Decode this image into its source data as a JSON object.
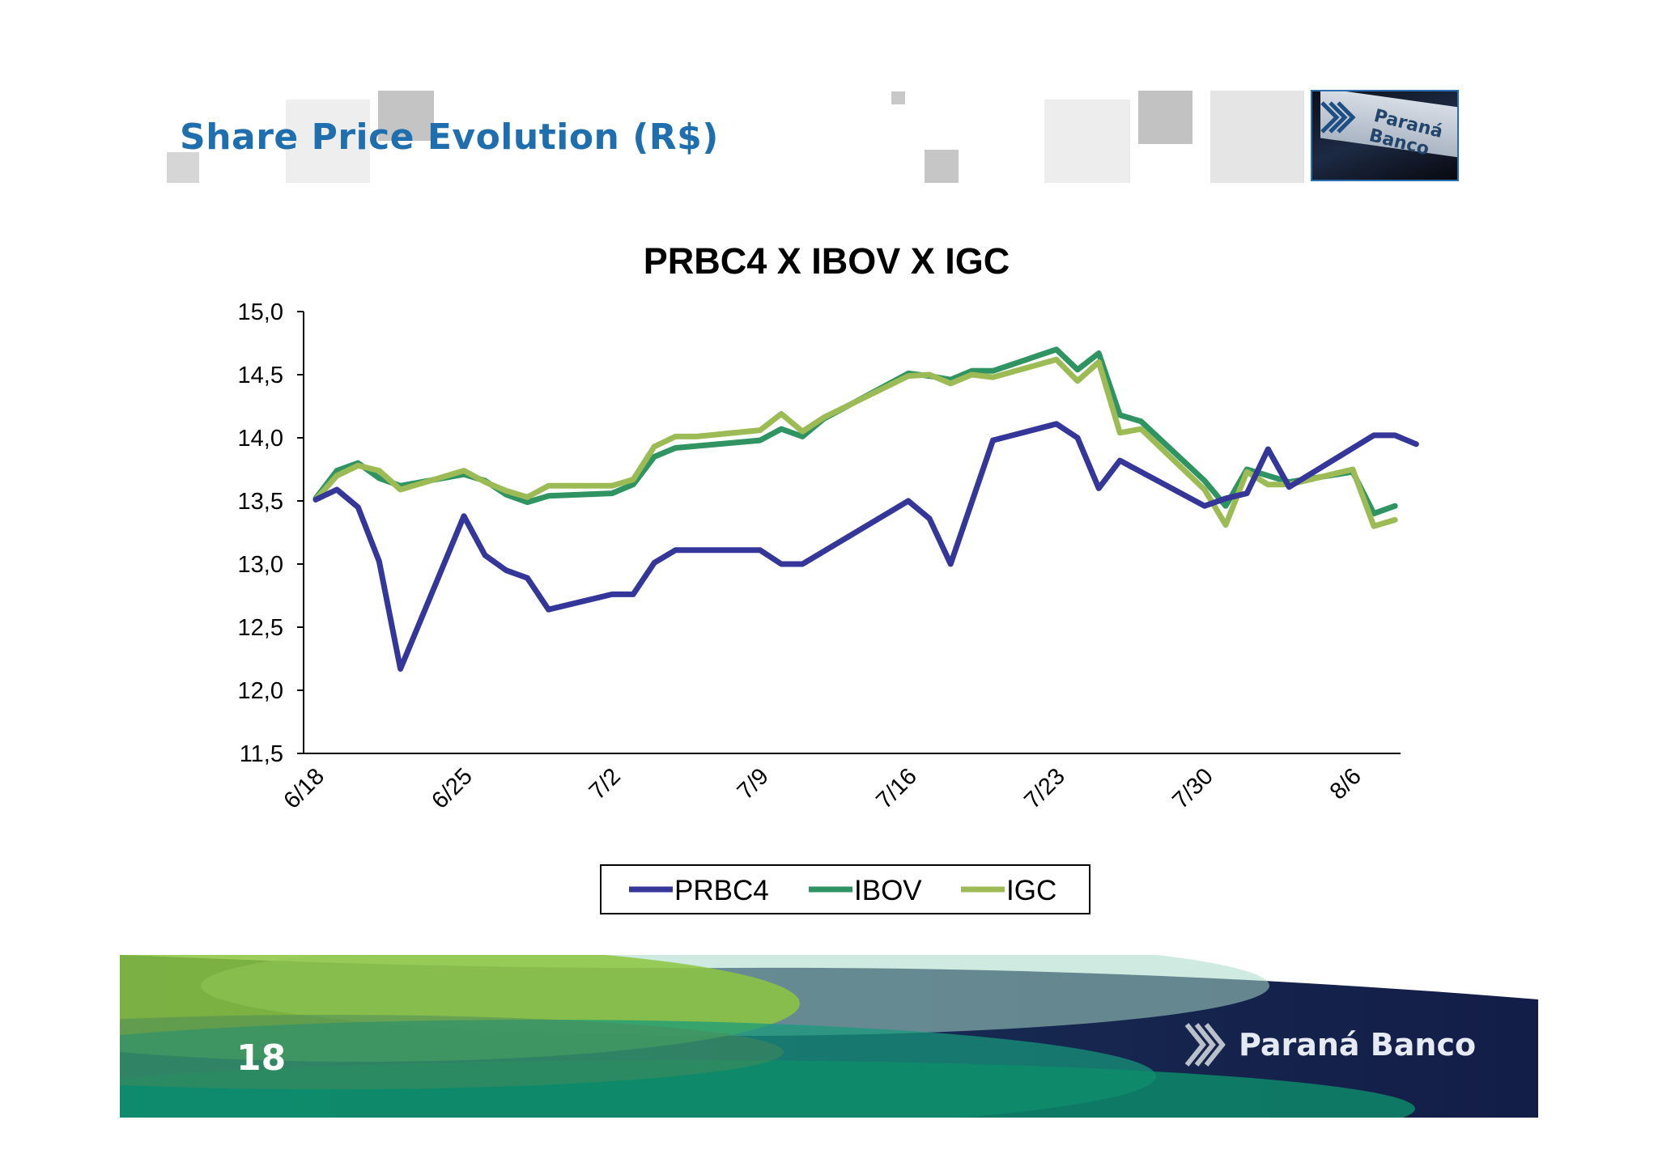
{
  "slide": {
    "title": "Share Price Evolution (R$)",
    "page_number": "18",
    "brand_name": "Paraná Banco",
    "thumbnail_text": "Paraná Banco"
  },
  "colors": {
    "title": "#1f6fae",
    "PRBC4": "#35369a",
    "IBOV": "#2f9462",
    "IGC": "#9dbb55",
    "footer_navy": "#14224a",
    "footer_green": "#7cbf3c",
    "footer_teal": "#0d8a72"
  },
  "chart_data": {
    "type": "line",
    "title": "PRBC4 X IBOV X IGC",
    "xlabel": "",
    "ylabel": "",
    "ylim": [
      11.5,
      15.0
    ],
    "yticks": [
      "15,0",
      "14,5",
      "14,0",
      "13,5",
      "13,0",
      "12,5",
      "12,0",
      "11,5"
    ],
    "ytick_values": [
      15.0,
      14.5,
      14.0,
      13.5,
      13.0,
      12.5,
      12.0,
      11.5
    ],
    "xticks": [
      "6/18",
      "6/25",
      "7/2",
      "7/9",
      "7/16",
      "7/23",
      "7/30",
      "8/6"
    ],
    "xtick_days": [
      0,
      7,
      14,
      21,
      28,
      35,
      42,
      49
    ],
    "grid": false,
    "legend_position": "bottom-center",
    "series": [
      {
        "name": "PRBC4",
        "x": [
          0,
          1,
          2,
          3,
          4,
          7,
          8,
          9,
          10,
          11,
          14,
          15,
          16,
          17,
          21,
          22,
          23,
          24,
          28,
          29,
          30,
          32,
          35,
          36,
          37,
          38,
          42,
          43,
          44,
          45,
          46,
          50,
          51,
          52
        ],
        "y": [
          13.51,
          13.59,
          13.45,
          13.02,
          12.17,
          13.38,
          13.07,
          12.95,
          12.89,
          12.64,
          12.76,
          12.76,
          13.01,
          13.11,
          13.11,
          13.0,
          13.0,
          13.1,
          13.5,
          13.36,
          13.0,
          13.98,
          14.11,
          14.0,
          13.6,
          13.82,
          13.46,
          13.52,
          13.56,
          13.91,
          13.61,
          14.02,
          14.02,
          13.95
        ]
      },
      {
        "name": "IBOV",
        "x": [
          0,
          1,
          2,
          3,
          4,
          7,
          8,
          9,
          10,
          11,
          14,
          15,
          16,
          17,
          21,
          22,
          23,
          24,
          28,
          29,
          30,
          31,
          32,
          35,
          36,
          37,
          38,
          39,
          42,
          43,
          44,
          45,
          46,
          49,
          50,
          51
        ],
        "y": [
          13.52,
          13.74,
          13.8,
          13.68,
          13.62,
          13.71,
          13.66,
          13.55,
          13.49,
          13.54,
          13.56,
          13.63,
          13.85,
          13.92,
          13.98,
          14.07,
          14.01,
          14.15,
          14.51,
          14.49,
          14.46,
          14.53,
          14.53,
          14.7,
          14.54,
          14.67,
          14.18,
          14.13,
          13.66,
          13.46,
          13.75,
          13.7,
          13.65,
          13.73,
          13.4,
          13.46
        ]
      },
      {
        "name": "IGC",
        "x": [
          0,
          1,
          2,
          3,
          4,
          7,
          8,
          9,
          10,
          11,
          14,
          15,
          16,
          17,
          18,
          21,
          22,
          23,
          24,
          28,
          29,
          30,
          31,
          32,
          35,
          36,
          37,
          38,
          39,
          42,
          43,
          44,
          45,
          46,
          49,
          50,
          51
        ],
        "y": [
          13.51,
          13.7,
          13.78,
          13.74,
          13.59,
          13.74,
          13.65,
          13.58,
          13.53,
          13.62,
          13.62,
          13.67,
          13.93,
          14.01,
          14.01,
          14.06,
          14.19,
          14.05,
          14.16,
          14.49,
          14.5,
          14.43,
          14.5,
          14.48,
          14.62,
          14.45,
          14.6,
          14.04,
          14.07,
          13.59,
          13.31,
          13.73,
          13.63,
          13.63,
          13.75,
          13.3,
          13.35
        ]
      }
    ]
  }
}
